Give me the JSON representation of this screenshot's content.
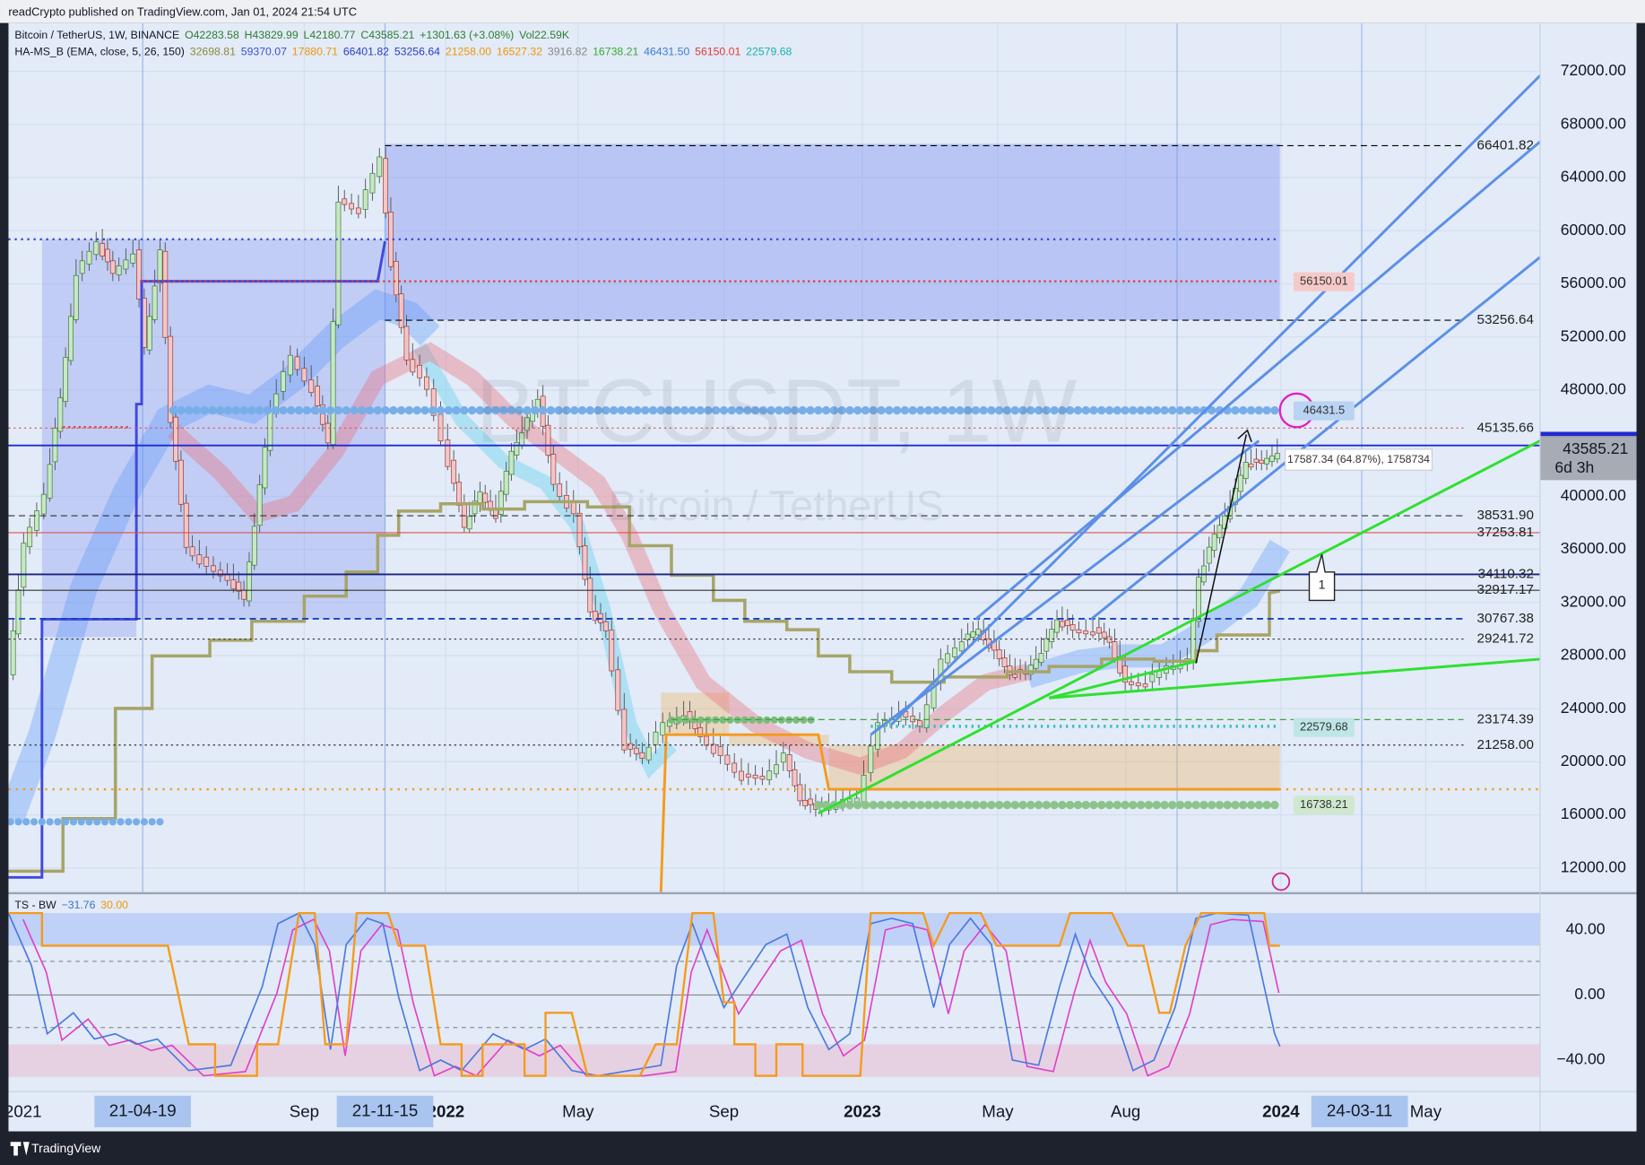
{
  "header": {
    "publisher": "readCrypto published on TradingView.com, Jan 01, 2024 21:54 UTC"
  },
  "legend": {
    "symbol": "Bitcoin / TetherUS, 1W, BINANCE",
    "ohlc": [
      "O42283.58",
      "H43829.99",
      "L42180.77",
      "C43585.21",
      "+1301.63 (+3.08%)",
      "Vol22.59K"
    ],
    "indicator": "HA-MS_B (EMA, close, 5, 26, 150)",
    "indicator_values": [
      {
        "text": "32698.81",
        "color": "#8a8a3c"
      },
      {
        "text": "59370.07",
        "color": "#3b4fd8"
      },
      {
        "text": "17880.71",
        "color": "#f0960a"
      },
      {
        "text": "66401.82",
        "color": "#2b3fc0"
      },
      {
        "text": "53256.64",
        "color": "#2b3fc0"
      },
      {
        "text": "21258.00",
        "color": "#f0960a"
      },
      {
        "text": "16527.32",
        "color": "#f0960a"
      },
      {
        "text": "3916.82",
        "color": "#888888"
      },
      {
        "text": "16738.21",
        "color": "#3aa63a"
      },
      {
        "text": "46431.50",
        "color": "#3b7bd8"
      },
      {
        "text": "56150.01",
        "color": "#e03a3a"
      },
      {
        "text": "22579.68",
        "color": "#1ab0b0"
      }
    ]
  },
  "watermark": {
    "ticker": "BTCUSDT, 1W",
    "name": "Bitcoin / TetherUS"
  },
  "price_axis": {
    "ticks": [
      {
        "value": 72000,
        "label": "72000.00"
      },
      {
        "value": 68000,
        "label": "68000.00"
      },
      {
        "value": 64000,
        "label": "64000.00"
      },
      {
        "value": 60000,
        "label": "60000.00"
      },
      {
        "value": 56000,
        "label": "56000.00"
      },
      {
        "value": 52000,
        "label": "52000.00"
      },
      {
        "value": 48000,
        "label": "48000.00"
      },
      {
        "value": 40000,
        "label": "40000.00"
      },
      {
        "value": 36000,
        "label": "36000.00"
      },
      {
        "value": 32000,
        "label": "32000.00"
      },
      {
        "value": 28000,
        "label": "28000.00"
      },
      {
        "value": 24000,
        "label": "24000.00"
      },
      {
        "value": 20000,
        "label": "20000.00"
      },
      {
        "value": 16000,
        "label": "16000.00"
      },
      {
        "value": 12000,
        "label": "12000.00"
      }
    ]
  },
  "levels": [
    {
      "value": 66401.82,
      "color": "#000000",
      "line": "dashed"
    },
    {
      "value": 53256.64,
      "color": "#000000",
      "line": "dashed"
    },
    {
      "value": 45135.66,
      "color": "#e05050",
      "line": "dotted"
    },
    {
      "value": 38531.9,
      "label": "38531.90",
      "color": "#333333",
      "line": "dashed"
    },
    {
      "value": 37253.81,
      "color": "#e05050",
      "line": "solid"
    },
    {
      "value": 34110.32,
      "color": "#1a237e",
      "line": "solid"
    },
    {
      "value": 32917.17,
      "color": "#333333",
      "line": "solid"
    },
    {
      "value": 30767.38,
      "color": "#1a3fc0",
      "line": "dashed"
    },
    {
      "value": 29241.72,
      "color": "#333333",
      "line": "dotted"
    },
    {
      "value": 23174.39,
      "color": "#3aa63a",
      "line": "dashed"
    },
    {
      "value": 21258,
      "label": "21258.00",
      "color": "#333333",
      "line": "dotted"
    }
  ],
  "tags": [
    {
      "value": 56150.01,
      "color": "#f6c9c9"
    },
    {
      "value": 46431.5,
      "color": "#b9d3f3"
    },
    {
      "value": 22579.68,
      "color": "#bfe6e6"
    },
    {
      "value": 16738.21,
      "color": "#cfe8cf"
    }
  ],
  "measure": "17587.34 (64.87%), 1758734",
  "callout": "1",
  "last_price": {
    "value": 43823.59
  },
  "close": {
    "value": 43585.21,
    "countdown": "6d 3h"
  },
  "oscillator": {
    "title": "TS - BW",
    "values": [
      {
        "text": "−31.76",
        "color": "#3b6fd8"
      },
      {
        "text": "30.00",
        "color": "#f0960a"
      }
    ],
    "ticks": [
      {
        "value": 40,
        "label": "40.00"
      },
      {
        "value": 0,
        "label": "0.00"
      },
      {
        "value": -40,
        "label": "−40.00"
      }
    ]
  },
  "time_axis": {
    "labels": [
      "2021",
      "Sep",
      "2022",
      "May",
      "Sep",
      "2023",
      "May",
      "Aug",
      "2024",
      "May"
    ],
    "highlights": [
      "21-04-19",
      "21-11-15",
      "24-03-11"
    ]
  },
  "footer": {
    "brand": "TradingView"
  }
}
